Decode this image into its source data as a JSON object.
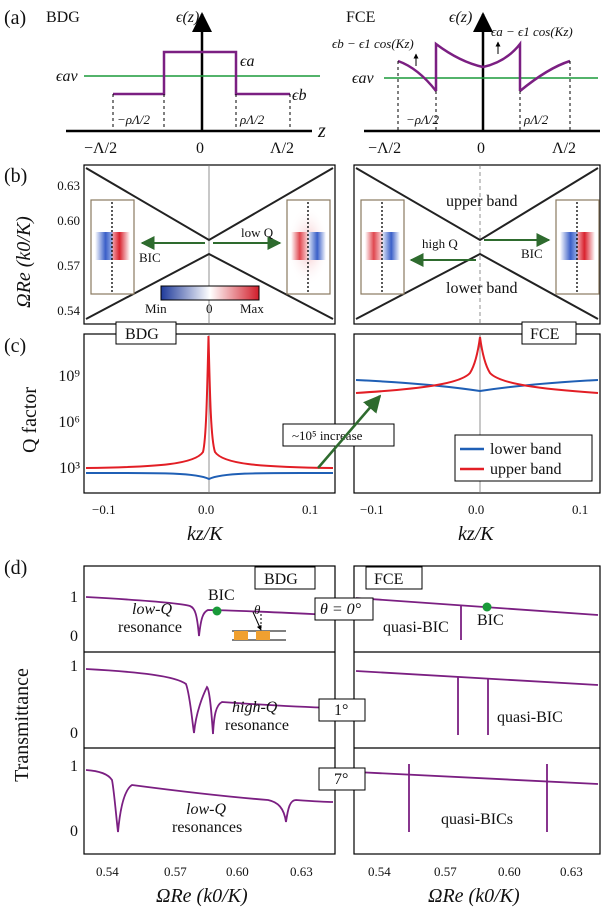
{
  "labels": {
    "panel_a": "(a)",
    "panel_b": "(b)",
    "panel_c": "(c)",
    "panel_d": "(d)"
  },
  "panel_a": {
    "bdg": {
      "title": "BDG",
      "yaxis": "ϵ(z)",
      "eps_a": "ϵa",
      "eps_b": "ϵb",
      "eps_av": "ϵav",
      "tick_labels": [
        "−Λ/2",
        "0",
        "Λ/2"
      ],
      "inner_labels": [
        "−ρΛ/2",
        "ρΛ/2"
      ]
    },
    "fce": {
      "title": "FCE",
      "yaxis": "ϵ(z)",
      "eps_b_expr": "ϵb − ϵ1 cos(Kz)",
      "eps_a_expr": "ϵa − ϵ1 cos(Kz)",
      "eps_av": "ϵav",
      "tick_labels": [
        "−Λ/2",
        "0",
        "Λ/2"
      ],
      "inner_labels": [
        "−ρΛ/2",
        "ρΛ/2"
      ],
      "z_label": "z"
    }
  },
  "panel_b": {
    "ylabel": "ΩRe (k0/K)",
    "yticks": [
      "0.63",
      "0.60",
      "0.57",
      "0.54"
    ],
    "left": {
      "bic": "BIC",
      "lowq": "low Q",
      "cbar_min": "Min",
      "cbar_zero": "0",
      "cbar_max": "Max"
    },
    "right": {
      "upper": "upper band",
      "lower": "lower band",
      "highq": "high Q",
      "bic": "BIC"
    }
  },
  "panel_c": {
    "ylabel": "Q factor",
    "yticks": [
      "10⁹",
      "10⁶",
      "10³"
    ],
    "xticks": [
      "−0.1",
      "0.0",
      "0.1"
    ],
    "xlabel": "kz/K",
    "tag_left": "BDG",
    "tag_right": "FCE",
    "annotation": "~10⁵ increase",
    "legend": [
      "lower band",
      "upper band"
    ]
  },
  "panel_d": {
    "ylabel": "Transmittance",
    "yticks": [
      "1",
      "0"
    ],
    "xticks": [
      "0.54",
      "0.57",
      "0.60",
      "0.63"
    ],
    "xlabel": "ΩRe (k0/K)",
    "tag_left": "BDG",
    "tag_right": "FCE",
    "angles": [
      "θ = 0°",
      "1°",
      "7°"
    ],
    "inset_theta": "θ",
    "row0": {
      "left": [
        "BIC",
        "low-Q",
        "resonance"
      ],
      "right": [
        "quasi-BIC",
        "BIC"
      ]
    },
    "row1": {
      "left": [
        "high-Q",
        "resonance"
      ],
      "right": [
        "quasi-BIC"
      ]
    },
    "row2": {
      "left": [
        "low-Q",
        "resonances"
      ],
      "right": [
        "quasi-BICs"
      ]
    }
  },
  "colors": {
    "purple": "#7b1f82",
    "green": "#1a9a3a",
    "blue": "#1f5fb5",
    "red": "#e21e25",
    "darkgreen": "#2e6b2e",
    "orange": "#f0a030"
  },
  "chart_data": [
    {
      "type": "line",
      "panel": "a-BDG",
      "xlabel": "z",
      "ylabel": "ϵ(z)",
      "x_ticks": [
        "−Λ/2",
        "0",
        "Λ/2"
      ],
      "series": [
        {
          "name": "ϵ(z)",
          "x": [
            -0.5,
            -0.3,
            -0.3,
            0.3,
            0.3,
            0.5
          ],
          "y": [
            1,
            1,
            2,
            2,
            1,
            1
          ]
        },
        {
          "name": "ϵav",
          "x": [
            -0.5,
            0.5
          ],
          "y": [
            1.5,
            1.5
          ]
        }
      ]
    },
    {
      "type": "line",
      "panel": "a-FCE",
      "xlabel": "z",
      "ylabel": "ϵ(z)",
      "x_ticks": [
        "−Λ/2",
        "0",
        "Λ/2"
      ],
      "series": [
        {
          "name": "ϵb − ϵ1 cos(Kz)",
          "x": [
            -0.5,
            -0.4,
            -0.3
          ],
          "y": [
            1.3,
            1.2,
            0.9
          ]
        },
        {
          "name": "ϵa − ϵ1 cos(Kz)",
          "x": [
            -0.3,
            -0.15,
            0,
            0.15,
            0.3
          ],
          "y": [
            2.2,
            1.9,
            1.6,
            1.9,
            2.2
          ]
        },
        {
          "name": "ϵb − ϵ1 cos(Kz)",
          "x": [
            0.3,
            0.4,
            0.5
          ],
          "y": [
            0.9,
            1.2,
            1.3
          ]
        },
        {
          "name": "ϵav",
          "x": [
            -0.5,
            0.5
          ],
          "y": [
            1.5,
            1.5
          ]
        }
      ]
    },
    {
      "type": "line",
      "panel": "b",
      "ylabel": "ΩRe (k0/K)",
      "ylim": [
        0.53,
        0.64
      ],
      "series": [
        {
          "name": "upper band",
          "x": [
            -0.12,
            0,
            0.12
          ],
          "y": [
            0.636,
            0.588,
            0.636
          ]
        },
        {
          "name": "lower band",
          "x": [
            -0.12,
            0,
            0.12
          ],
          "y": [
            0.532,
            0.579,
            0.532
          ]
        }
      ]
    },
    {
      "type": "line",
      "panel": "c-BDG",
      "xlabel": "kz/K",
      "ylabel": "Q factor",
      "y_scale": "log",
      "ylim": [
        100,
        1000000000000.0
      ],
      "series": [
        {
          "name": "lower band",
          "x": [
            -0.12,
            -0.06,
            0,
            0.06,
            0.12
          ],
          "y": [
            400,
            350,
            200,
            350,
            400
          ]
        },
        {
          "name": "upper band",
          "x": [
            -0.12,
            -0.06,
            -0.02,
            -0.005,
            0,
            0.005,
            0.02,
            0.06,
            0.12
          ],
          "y": [
            600,
            700,
            2000,
            40000,
            1000000000000.0,
            40000,
            2000,
            700,
            600
          ]
        }
      ]
    },
    {
      "type": "line",
      "panel": "c-FCE",
      "xlabel": "kz/K",
      "ylabel": "Q factor",
      "y_scale": "log",
      "ylim": [
        100,
        1000000000000.0
      ],
      "series": [
        {
          "name": "lower band",
          "x": [
            -0.12,
            -0.06,
            0,
            0.06,
            0.12
          ],
          "y": [
            200000000.0,
            120000000.0,
            70000000.0,
            120000000.0,
            200000000.0
          ]
        },
        {
          "name": "upper band",
          "x": [
            -0.12,
            -0.06,
            -0.02,
            0,
            0.02,
            0.06,
            0.12
          ],
          "y": [
            60000000.0,
            100000000.0,
            500000000.0,
            100000000000.0,
            500000000.0,
            100000000.0,
            60000000.0
          ]
        }
      ]
    },
    {
      "type": "line",
      "panel": "d",
      "xlabel": "ΩRe (k0/K)",
      "ylabel": "Transmittance",
      "xlim": [
        0.525,
        0.645
      ],
      "ylim": [
        -0.1,
        1.15
      ],
      "series": [
        {
          "name": "BDG θ = 0°",
          "resonances": [
            0.578
          ],
          "bic_marker": 0.588
        },
        {
          "name": "BDG 1°",
          "resonances": [
            0.577,
            0.589
          ]
        },
        {
          "name": "BDG 7°",
          "resonances": [
            0.55,
            0.62
          ]
        },
        {
          "name": "FCE θ = 0°",
          "resonances": [
            0.578
          ],
          "bic_marker": 0.588
        },
        {
          "name": "FCE 1°",
          "resonances": [
            0.574,
            0.589
          ]
        },
        {
          "name": "FCE 7°",
          "resonances": [
            0.551,
            0.62
          ]
        }
      ]
    }
  ]
}
